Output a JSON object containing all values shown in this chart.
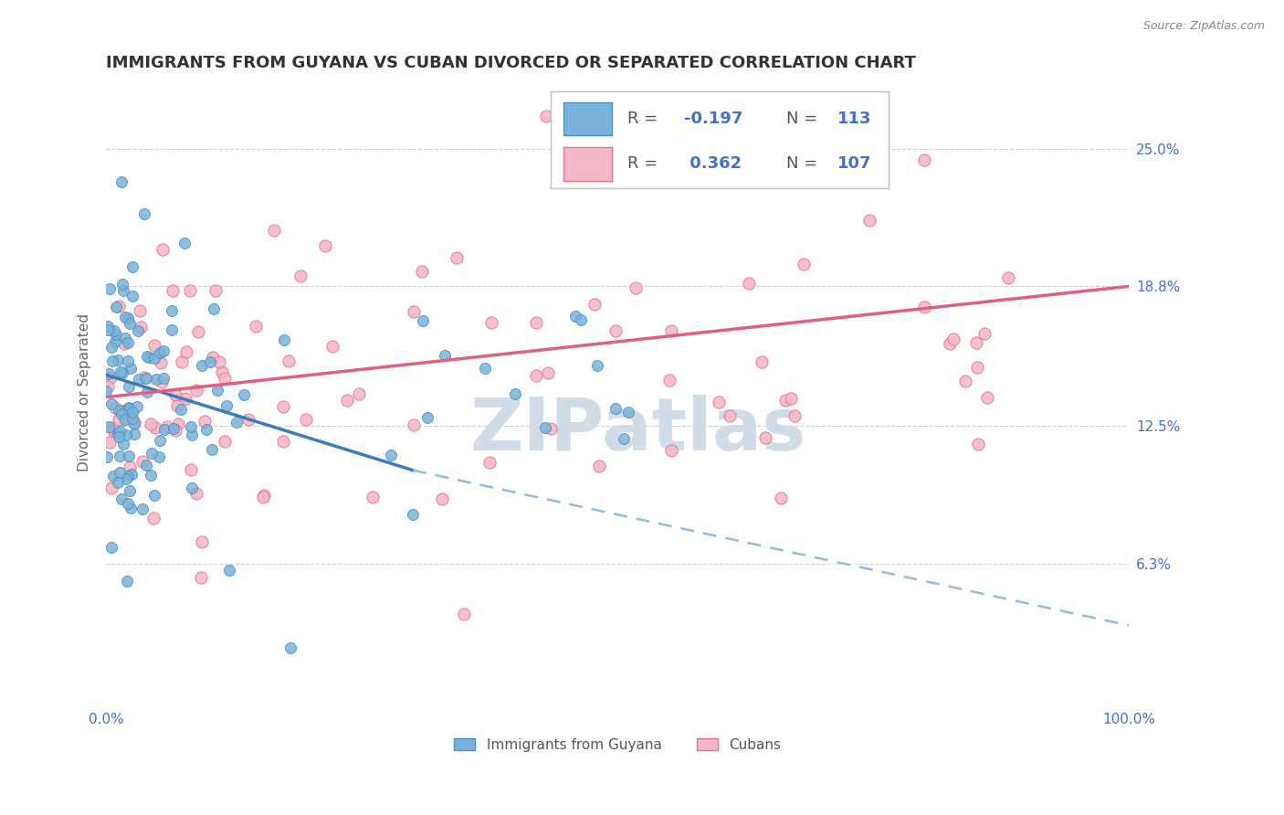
{
  "title": "IMMIGRANTS FROM GUYANA VS CUBAN DIVORCED OR SEPARATED CORRELATION CHART",
  "source_text": "Source: ZipAtlas.com",
  "ylabel": "Divorced or Separated",
  "watermark": "ZIPatlas",
  "xlim": [
    0.0,
    100.0
  ],
  "ylim": [
    0.0,
    28.0
  ],
  "yticks": [
    6.3,
    12.5,
    18.8,
    25.0
  ],
  "ytick_labels": [
    "6.3%",
    "12.5%",
    "18.8%",
    "25.0%"
  ],
  "xtick_labels": [
    "0.0%",
    "100.0%"
  ],
  "blue_color": "#7ab3d9",
  "blue_edge": "#4a90c4",
  "pink_color": "#f5b8c8",
  "pink_edge": "#e8708a",
  "blue_trend_color": "#3a7abf",
  "blue_dash_color": "#93bcd8",
  "pink_trend_color": "#e06080",
  "grid_color": "#cccccc",
  "title_color": "#333333",
  "axis_label_color": "#666666",
  "tick_label_color": "#4472c4",
  "watermark_color": "#d0dde8",
  "source_color": "#888888",
  "legend_text_color": "#4472c4",
  "legend_label_color": "#333333",
  "background_color": "#ffffff",
  "blue_R": -0.197,
  "blue_N": 113,
  "pink_R": 0.362,
  "pink_N": 107,
  "blue_trend_x_start": 0.0,
  "blue_trend_x_end": 30.0,
  "blue_trend_y_start": 14.8,
  "blue_trend_y_end": 10.5,
  "blue_dash_x_start": 30.0,
  "blue_dash_x_end": 100.0,
  "blue_dash_y_start": 10.5,
  "blue_dash_y_end": 3.5,
  "pink_trend_x_start": 0.0,
  "pink_trend_x_end": 100.0,
  "pink_trend_y_start": 13.8,
  "pink_trend_y_end": 18.8
}
